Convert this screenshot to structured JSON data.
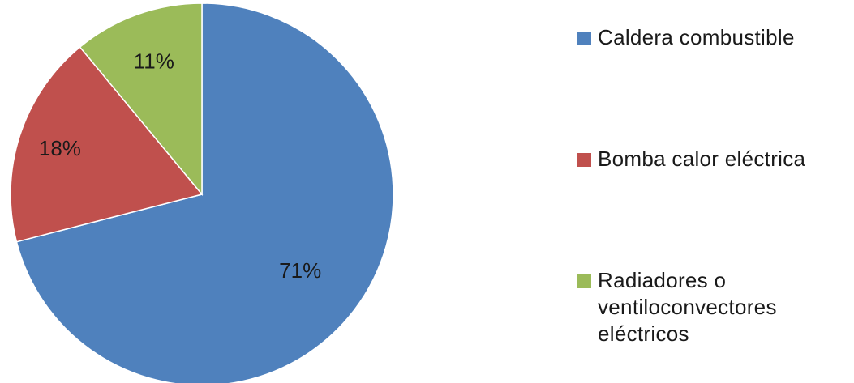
{
  "chart_data": {
    "type": "pie",
    "categories": [
      "Caldera combustible",
      "Bomba calor eléctrica",
      "Radiadores o ventiloconvectores eléctricos"
    ],
    "values": [
      71,
      18,
      11
    ],
    "data_labels": [
      "71%",
      "18%",
      "11%"
    ],
    "colors": [
      "#4f81bd",
      "#c0504d",
      "#9bbb59"
    ],
    "legend_position": "right",
    "start_angle": "top, clockwise"
  },
  "legend": {
    "items": [
      {
        "label": "Caldera combustible",
        "color": "#4f81bd"
      },
      {
        "label": "Bomba calor eléctrica",
        "color": "#c0504d"
      },
      {
        "label": "Radiadores o ventiloconvectores eléctricos",
        "color": "#9bbb59"
      }
    ]
  }
}
